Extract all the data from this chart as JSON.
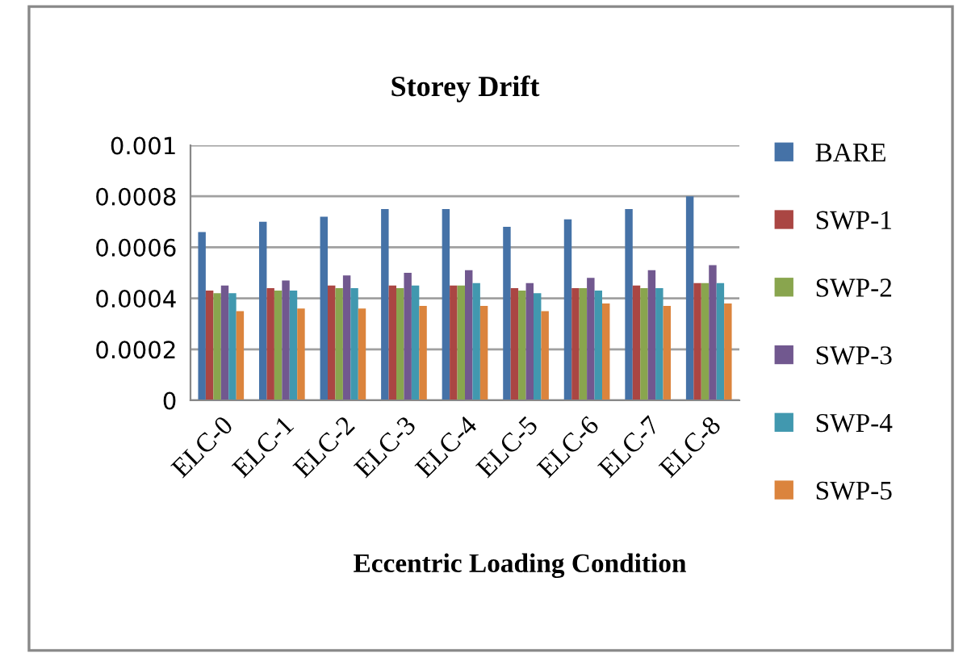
{
  "chart_data": {
    "type": "bar",
    "title": "Storey Drift",
    "xlabel": "Eccentric Loading Condition",
    "categories": [
      "ELC-0",
      "ELC-1",
      "ELC-2",
      "ELC-3",
      "ELC-4",
      "ELC-5",
      "ELC-6",
      "ELC-7",
      "ELC-8"
    ],
    "series": [
      {
        "name": "BARE",
        "color": "#4572a7",
        "values": [
          0.00066,
          0.0007,
          0.00072,
          0.00075,
          0.00075,
          0.00068,
          0.00071,
          0.00075,
          0.0008
        ]
      },
      {
        "name": "SWP-1",
        "color": "#aa4643",
        "values": [
          0.00043,
          0.00044,
          0.00045,
          0.00045,
          0.00045,
          0.00044,
          0.00044,
          0.00045,
          0.00046
        ]
      },
      {
        "name": "SWP-2",
        "color": "#89a54e",
        "values": [
          0.00042,
          0.00043,
          0.00044,
          0.00044,
          0.00045,
          0.00043,
          0.00044,
          0.00044,
          0.00046
        ]
      },
      {
        "name": "SWP-3",
        "color": "#71588f",
        "values": [
          0.00045,
          0.00047,
          0.00049,
          0.0005,
          0.00051,
          0.00046,
          0.00048,
          0.00051,
          0.00053
        ]
      },
      {
        "name": "SWP-4",
        "color": "#4198af",
        "values": [
          0.00042,
          0.00043,
          0.00044,
          0.00045,
          0.00046,
          0.00042,
          0.00043,
          0.00044,
          0.00046
        ]
      },
      {
        "name": "SWP-5",
        "color": "#db843d",
        "values": [
          0.00035,
          0.00036,
          0.00036,
          0.00037,
          0.00037,
          0.00035,
          0.00038,
          0.00037,
          0.00038
        ]
      }
    ],
    "ylim": [
      0,
      0.001
    ],
    "yticks": [
      0,
      0.0002,
      0.0004,
      0.0006,
      0.0008,
      0.001
    ],
    "grid": "y",
    "legend": "right"
  }
}
